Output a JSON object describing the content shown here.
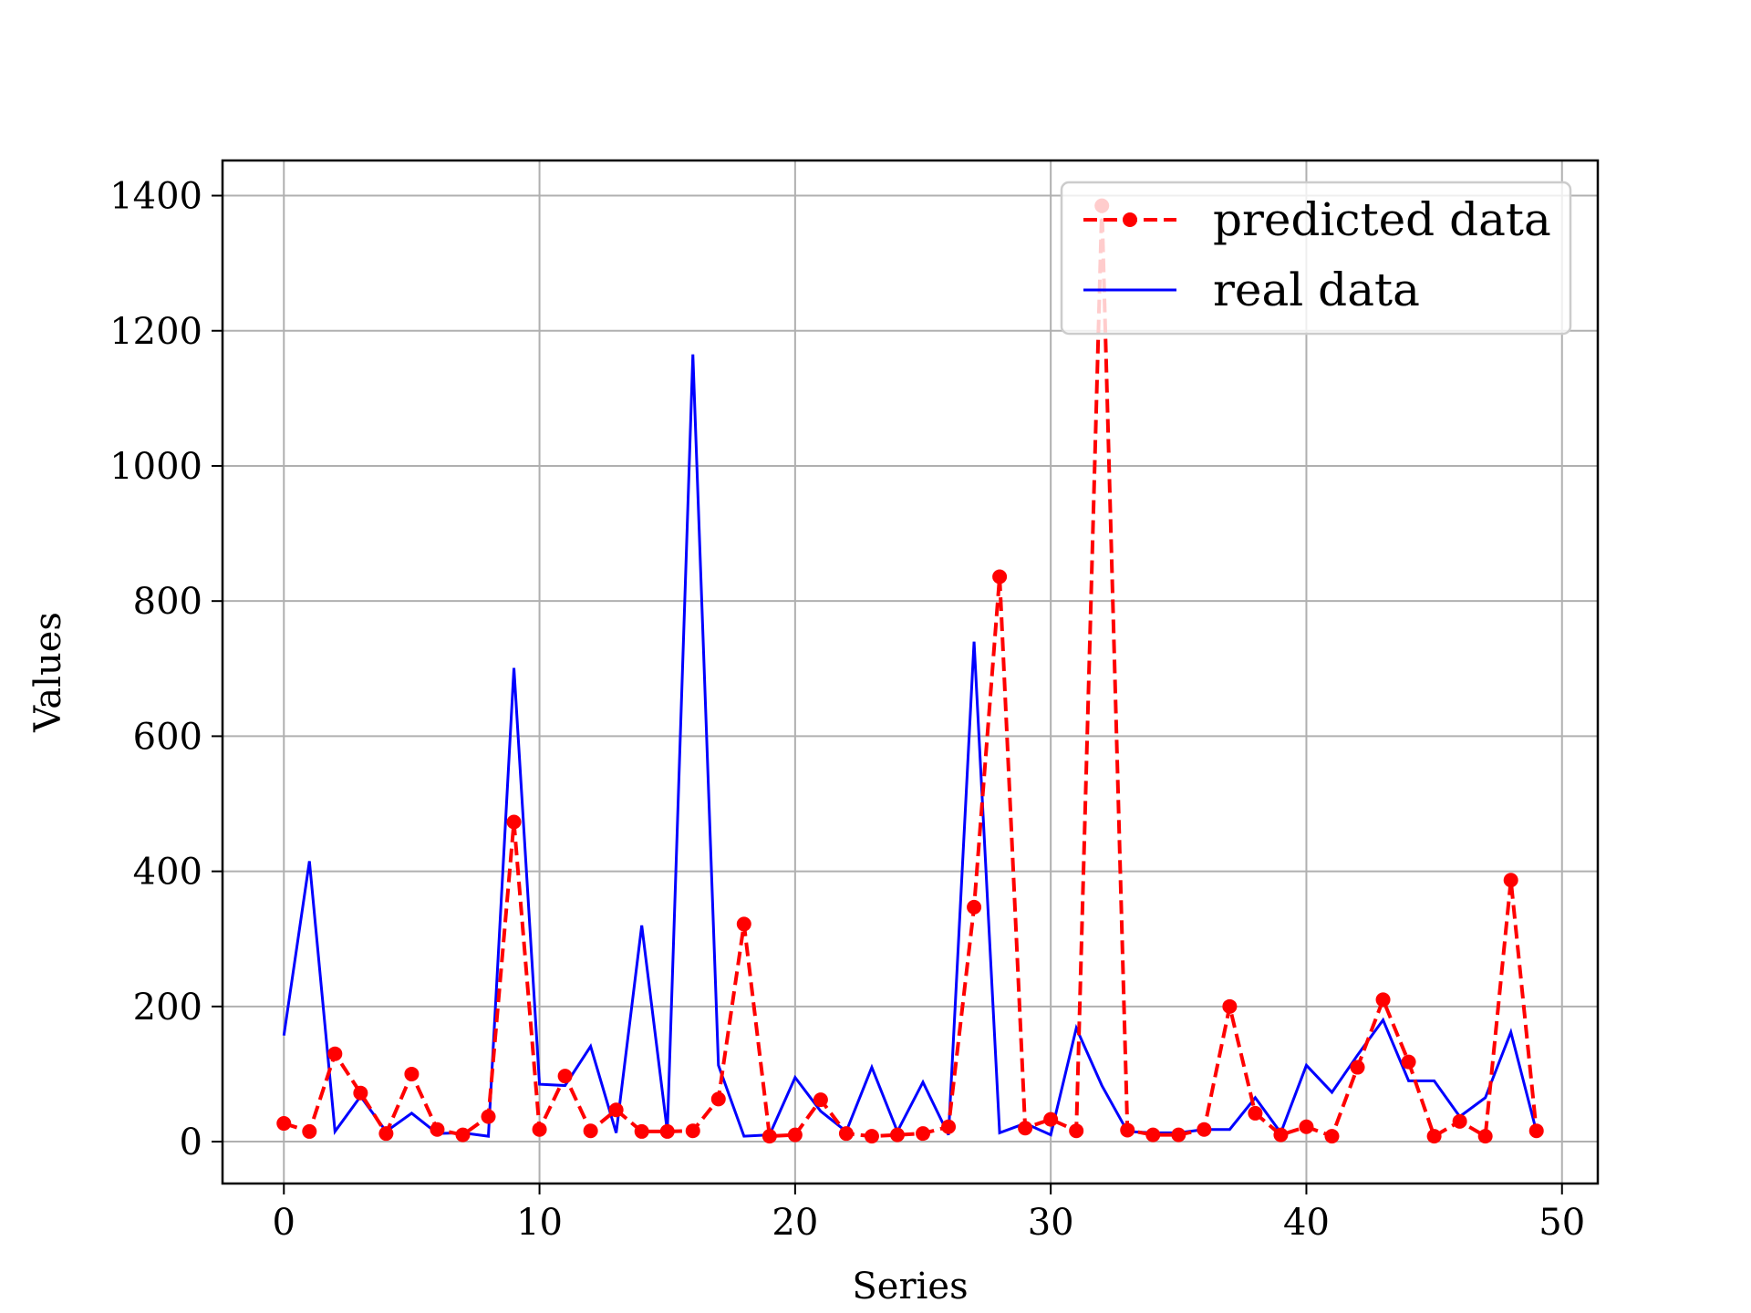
{
  "chart_data": {
    "type": "line",
    "title": "",
    "xlabel": "Series",
    "ylabel": "Values",
    "xlim": [
      -2.4,
      51.4
    ],
    "ylim": [
      -62,
      1452
    ],
    "xticks": [
      0,
      10,
      20,
      30,
      40,
      50
    ],
    "yticks": [
      0,
      200,
      400,
      600,
      800,
      1000,
      1200,
      1400
    ],
    "grid": true,
    "legend_position": "top-right",
    "x": [
      0,
      1,
      2,
      3,
      4,
      5,
      6,
      7,
      8,
      9,
      10,
      11,
      12,
      13,
      14,
      15,
      16,
      17,
      18,
      19,
      20,
      21,
      22,
      23,
      24,
      25,
      26,
      27,
      28,
      29,
      30,
      31,
      32,
      33,
      34,
      35,
      36,
      37,
      38,
      39,
      40,
      41,
      42,
      43,
      44,
      45,
      46,
      47,
      48,
      49
    ],
    "series": [
      {
        "name": "predicted data",
        "color": "#ff0000",
        "style": "dashed-with-markers",
        "values": [
          27,
          15,
          130,
          72,
          12,
          100,
          18,
          10,
          37,
          473,
          18,
          97,
          16,
          47,
          15,
          15,
          16,
          63,
          322,
          8,
          10,
          62,
          12,
          8,
          10,
          12,
          22,
          347,
          836,
          20,
          33,
          16,
          1385,
          17,
          10,
          10,
          18,
          200,
          42,
          10,
          22,
          8,
          110,
          210,
          118,
          8,
          30,
          8,
          387,
          16
        ]
      },
      {
        "name": "real data",
        "color": "#0000ff",
        "style": "solid",
        "values": [
          157,
          415,
          15,
          67,
          15,
          42,
          12,
          13,
          8,
          701,
          85,
          83,
          141,
          13,
          320,
          15,
          1165,
          113,
          8,
          10,
          95,
          45,
          15,
          110,
          15,
          88,
          10,
          740,
          13,
          27,
          10,
          168,
          83,
          15,
          13,
          13,
          18,
          18,
          65,
          13,
          113,
          73,
          128,
          180,
          90,
          90,
          37,
          65,
          162,
          15
        ]
      }
    ]
  }
}
